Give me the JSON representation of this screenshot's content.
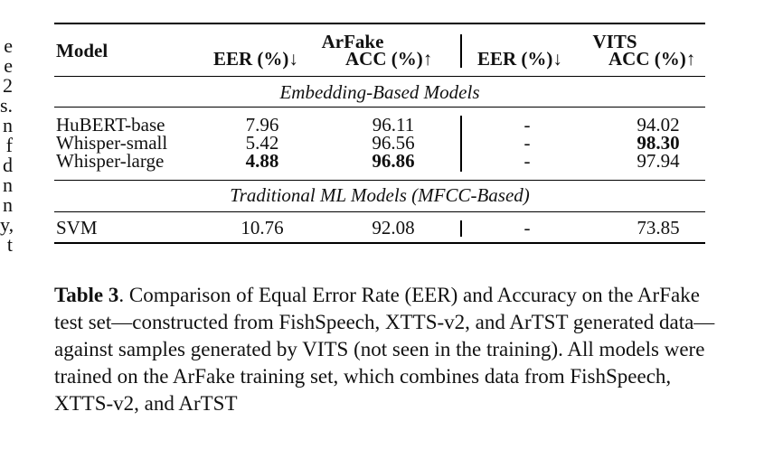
{
  "left_margin_fragments": [
    "e",
    "e",
    "2",
    "s.",
    "n",
    "f",
    "d",
    "n",
    "n",
    "y,",
    "t"
  ],
  "table": {
    "headers": {
      "model": "Model",
      "group1": "ArFake",
      "group2": "VITS",
      "eer": "EER (%)↓",
      "acc": "ACC (%)↑"
    },
    "sections": [
      {
        "title": "Embedding-Based Models",
        "rows": [
          {
            "model": "HuBERT-base",
            "arfake_eer": "7.96",
            "arfake_acc": "96.11",
            "vits_eer": "-",
            "vits_acc": "94.02"
          },
          {
            "model": "Whisper-small",
            "arfake_eer": "5.42",
            "arfake_acc": "96.56",
            "vits_eer": "-",
            "vits_acc": "98.30"
          },
          {
            "model": "Whisper-large",
            "arfake_eer": "4.88",
            "arfake_acc": "96.86",
            "vits_eer": "-",
            "vits_acc": "97.94"
          }
        ]
      },
      {
        "title": "Traditional ML Models (MFCC-Based)",
        "rows": [
          {
            "model": "SVM",
            "arfake_eer": "10.76",
            "arfake_acc": "92.08",
            "vits_eer": "-",
            "vits_acc": "73.85"
          }
        ]
      }
    ]
  },
  "caption": {
    "label": "Table 3",
    "text": ". Comparison of Equal Error Rate (EER) and Accuracy on the ArFake test set—constructed from FishSpeech, XTTS-v2, and ArTST generated data—against samples generated by VITS (not seen in the training). All models were trained on the ArFake training set, which combines data from FishSpeech, XTTS-v2, and ArTST"
  }
}
